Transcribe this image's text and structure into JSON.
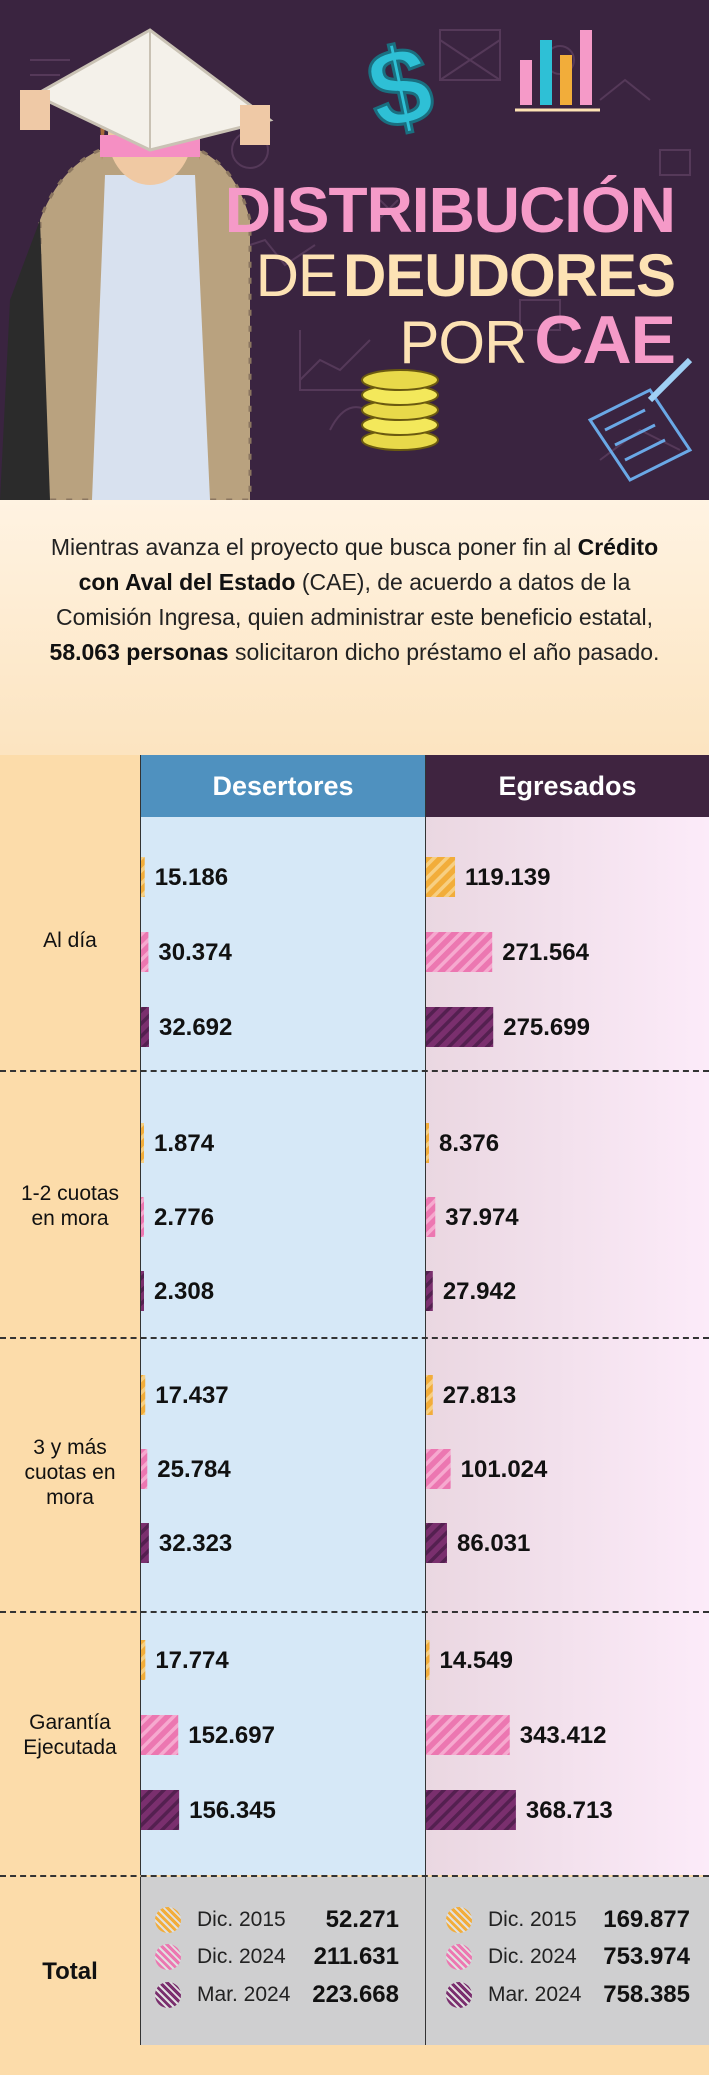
{
  "hero": {
    "title_line1": "DISTRIBUCIÓN",
    "title_line2_thin": "DE",
    "title_line2_bold": "DEUDORES",
    "title_line3_thin": "POR",
    "title_line3_bold": "CAE",
    "colors": {
      "background": "#3a2440",
      "pink": "#f59ac8",
      "cream": "#fde2b4"
    }
  },
  "intro": {
    "p1": "Mientras avanza el proyecto que busca poner fin al ",
    "b1": "Crédito con Aval del Estado",
    "p2": " (CAE), de acuerdo a datos de la Comisión Ingresa, quien administrar este beneficio estatal, ",
    "b2": "58.063 personas",
    "p3": " solicitaron dicho préstamo el año pasado."
  },
  "chart_data": {
    "type": "bar",
    "orientation": "horizontal",
    "panels": [
      "Desertores",
      "Egresados"
    ],
    "categories": [
      "Al día",
      "1-2 cuotas en mora",
      "3 y más cuotas en mora",
      "Garantía Ejecutada"
    ],
    "series": [
      {
        "name": "Dic. 2015",
        "color": "#f2ad3a",
        "desertores": [
          15186,
          1874,
          17437,
          17774
        ],
        "egresados": [
          119139,
          8376,
          27813,
          14549
        ],
        "desertores_labels": [
          "15.186",
          "1.874",
          "17.437",
          "17.774"
        ],
        "egresados_labels": [
          "119.139",
          "8.376",
          "27.813",
          "14.549"
        ]
      },
      {
        "name": "Dic. 2024",
        "color": "#ec77b1",
        "desertores": [
          30374,
          2776,
          25784,
          152697
        ],
        "egresados": [
          271564,
          37974,
          101024,
          343412
        ],
        "desertores_labels": [
          "30.374",
          "2.776",
          "25.784",
          "152.697"
        ],
        "egresados_labels": [
          "271.564",
          "37.974",
          "101.024",
          "343.412"
        ]
      },
      {
        "name": "Mar. 2024",
        "color": "#7a2f6e",
        "desertores": [
          32692,
          2308,
          32323,
          156345
        ],
        "egresados": [
          275699,
          27942,
          86031,
          368713
        ],
        "desertores_labels": [
          "32.692",
          "2.308",
          "32.323",
          "156.345"
        ],
        "egresados_labels": [
          "275.699",
          "27.942",
          "86.031",
          "368.713"
        ]
      }
    ],
    "totals": {
      "label": "Total",
      "desertores": [
        {
          "date": "Dic. 2015",
          "value": "52.271"
        },
        {
          "date": "Dic. 2024",
          "value": "211.631"
        },
        {
          "date": "Mar. 2024",
          "value": "223.668"
        }
      ],
      "egresados": [
        {
          "date": "Dic. 2015",
          "value": "169.877"
        },
        {
          "date": "Dic. 2024",
          "value": "753.974"
        },
        {
          "date": "Mar. 2024",
          "value": "758.385"
        }
      ]
    },
    "bar_pattern": "diagonal-stripes",
    "colors": {
      "desertores_header": "#4f91bf",
      "egresados_header": "#3f2440",
      "desertores_bg": "#d6e8f7",
      "egresados_bg": "#f4e2ee"
    }
  }
}
